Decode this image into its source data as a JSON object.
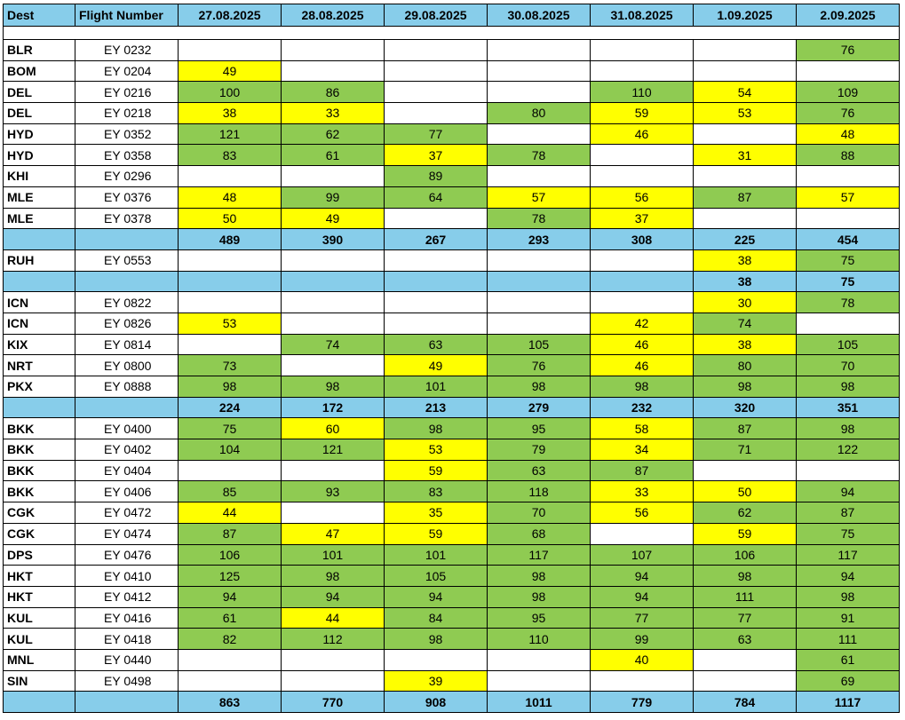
{
  "headers": [
    "Dest",
    "Flight Number",
    "27.08.2025",
    "28.08.2025",
    "29.08.2025",
    "30.08.2025",
    "31.08.2025",
    "1.09.2025",
    "2.09.2025"
  ],
  "colors": {
    "header": "#87cdea",
    "green": "#8fcb52",
    "yellow": "#ffff00",
    "white": "#ffffff"
  },
  "rows": [
    {
      "kind": "data",
      "dest": "BLR",
      "flight": "EY 0232",
      "cells": [
        [
          "",
          ""
        ],
        [
          "",
          ""
        ],
        [
          "",
          ""
        ],
        [
          "",
          ""
        ],
        [
          "",
          ""
        ],
        [
          "",
          ""
        ],
        [
          "76",
          "g"
        ]
      ]
    },
    {
      "kind": "data",
      "dest": "BOM",
      "flight": "EY 0204",
      "cells": [
        [
          "49",
          "y"
        ],
        [
          "",
          ""
        ],
        [
          "",
          ""
        ],
        [
          "",
          ""
        ],
        [
          "",
          ""
        ],
        [
          "",
          ""
        ],
        [
          "",
          ""
        ]
      ]
    },
    {
      "kind": "data",
      "dest": "DEL",
      "flight": "EY 0216",
      "cells": [
        [
          "100",
          "g"
        ],
        [
          "86",
          "g"
        ],
        [
          "",
          ""
        ],
        [
          "",
          ""
        ],
        [
          "110",
          "g"
        ],
        [
          "54",
          "y"
        ],
        [
          "109",
          "g"
        ]
      ]
    },
    {
      "kind": "data",
      "dest": "DEL",
      "flight": "EY 0218",
      "cells": [
        [
          "38",
          "y"
        ],
        [
          "33",
          "y"
        ],
        [
          "",
          ""
        ],
        [
          "80",
          "g"
        ],
        [
          "59",
          "y"
        ],
        [
          "53",
          "y"
        ],
        [
          "76",
          "g"
        ]
      ]
    },
    {
      "kind": "data",
      "dest": "HYD",
      "flight": "EY 0352",
      "cells": [
        [
          "121",
          "g"
        ],
        [
          "62",
          "g"
        ],
        [
          "77",
          "g"
        ],
        [
          "",
          ""
        ],
        [
          "46",
          "y"
        ],
        [
          "",
          ""
        ],
        [
          "48",
          "y"
        ]
      ]
    },
    {
      "kind": "data",
      "dest": "HYD",
      "flight": "EY 0358",
      "cells": [
        [
          "83",
          "g"
        ],
        [
          "61",
          "g"
        ],
        [
          "37",
          "y"
        ],
        [
          "78",
          "g"
        ],
        [
          "",
          ""
        ],
        [
          "31",
          "y"
        ],
        [
          "88",
          "g"
        ]
      ]
    },
    {
      "kind": "data",
      "dest": "KHI",
      "flight": "EY 0296",
      "cells": [
        [
          "",
          ""
        ],
        [
          "",
          ""
        ],
        [
          "89",
          "g"
        ],
        [
          "",
          ""
        ],
        [
          "",
          ""
        ],
        [
          "",
          ""
        ],
        [
          "",
          ""
        ]
      ]
    },
    {
      "kind": "data",
      "dest": "MLE",
      "flight": "EY 0376",
      "cells": [
        [
          "48",
          "y"
        ],
        [
          "99",
          "g"
        ],
        [
          "64",
          "g"
        ],
        [
          "57",
          "y"
        ],
        [
          "56",
          "y"
        ],
        [
          "87",
          "g"
        ],
        [
          "57",
          "y"
        ]
      ]
    },
    {
      "kind": "data",
      "dest": "MLE",
      "flight": "EY 0378",
      "cells": [
        [
          "50",
          "y"
        ],
        [
          "49",
          "y"
        ],
        [
          "",
          ""
        ],
        [
          "78",
          "g"
        ],
        [
          "37",
          "y"
        ],
        [
          "",
          ""
        ],
        [
          "",
          ""
        ]
      ]
    },
    {
      "kind": "total",
      "cells": [
        "489",
        "390",
        "267",
        "293",
        "308",
        "225",
        "454"
      ]
    },
    {
      "kind": "data",
      "dest": "RUH",
      "flight": "EY 0553",
      "cells": [
        [
          "",
          ""
        ],
        [
          "",
          ""
        ],
        [
          "",
          ""
        ],
        [
          "",
          ""
        ],
        [
          "",
          ""
        ],
        [
          "38",
          "y"
        ],
        [
          "75",
          "g"
        ]
      ]
    },
    {
      "kind": "total",
      "cells": [
        "",
        "",
        "",
        "",
        "",
        "38",
        "75"
      ]
    },
    {
      "kind": "data",
      "dest": "ICN",
      "flight": "EY 0822",
      "cells": [
        [
          "",
          ""
        ],
        [
          "",
          ""
        ],
        [
          "",
          ""
        ],
        [
          "",
          ""
        ],
        [
          "",
          ""
        ],
        [
          "30",
          "y"
        ],
        [
          "78",
          "g"
        ]
      ]
    },
    {
      "kind": "data",
      "dest": "ICN",
      "flight": "EY 0826",
      "cells": [
        [
          "53",
          "y"
        ],
        [
          "",
          ""
        ],
        [
          "",
          ""
        ],
        [
          "",
          ""
        ],
        [
          "42",
          "y"
        ],
        [
          "74",
          "g"
        ],
        [
          "",
          ""
        ]
      ]
    },
    {
      "kind": "data",
      "dest": "KIX",
      "flight": "EY 0814",
      "cells": [
        [
          "",
          ""
        ],
        [
          "74",
          "g"
        ],
        [
          "63",
          "g"
        ],
        [
          "105",
          "g"
        ],
        [
          "46",
          "y"
        ],
        [
          "38",
          "y"
        ],
        [
          "105",
          "g"
        ]
      ]
    },
    {
      "kind": "data",
      "dest": "NRT",
      "flight": "EY 0800",
      "cells": [
        [
          "73",
          "g"
        ],
        [
          "",
          ""
        ],
        [
          "49",
          "y"
        ],
        [
          "76",
          "g"
        ],
        [
          "46",
          "y"
        ],
        [
          "80",
          "g"
        ],
        [
          "70",
          "g"
        ]
      ]
    },
    {
      "kind": "data",
      "dest": "PKX",
      "flight": "EY 0888",
      "cells": [
        [
          "98",
          "g"
        ],
        [
          "98",
          "g"
        ],
        [
          "101",
          "g"
        ],
        [
          "98",
          "g"
        ],
        [
          "98",
          "g"
        ],
        [
          "98",
          "g"
        ],
        [
          "98",
          "g"
        ]
      ]
    },
    {
      "kind": "total",
      "cells": [
        "224",
        "172",
        "213",
        "279",
        "232",
        "320",
        "351"
      ]
    },
    {
      "kind": "data",
      "dest": "BKK",
      "flight": "EY 0400",
      "cells": [
        [
          "75",
          "g"
        ],
        [
          "60",
          "y"
        ],
        [
          "98",
          "g"
        ],
        [
          "95",
          "g"
        ],
        [
          "58",
          "y"
        ],
        [
          "87",
          "g"
        ],
        [
          "98",
          "g"
        ]
      ]
    },
    {
      "kind": "data",
      "dest": "BKK",
      "flight": "EY 0402",
      "cells": [
        [
          "104",
          "g"
        ],
        [
          "121",
          "g"
        ],
        [
          "53",
          "y"
        ],
        [
          "79",
          "g"
        ],
        [
          "34",
          "y"
        ],
        [
          "71",
          "g"
        ],
        [
          "122",
          "g"
        ]
      ]
    },
    {
      "kind": "data",
      "dest": "BKK",
      "flight": "EY 0404",
      "cells": [
        [
          "",
          ""
        ],
        [
          "",
          ""
        ],
        [
          "59",
          "y"
        ],
        [
          "63",
          "g"
        ],
        [
          "87",
          "g"
        ],
        [
          "",
          ""
        ],
        [
          "",
          ""
        ]
      ]
    },
    {
      "kind": "data",
      "dest": "BKK",
      "flight": "EY 0406",
      "cells": [
        [
          "85",
          "g"
        ],
        [
          "93",
          "g"
        ],
        [
          "83",
          "g"
        ],
        [
          "118",
          "g"
        ],
        [
          "33",
          "y"
        ],
        [
          "50",
          "y"
        ],
        [
          "94",
          "g"
        ]
      ]
    },
    {
      "kind": "data",
      "dest": "CGK",
      "flight": "EY 0472",
      "cells": [
        [
          "44",
          "y"
        ],
        [
          "",
          ""
        ],
        [
          "35",
          "y"
        ],
        [
          "70",
          "g"
        ],
        [
          "56",
          "y"
        ],
        [
          "62",
          "g"
        ],
        [
          "87",
          "g"
        ]
      ]
    },
    {
      "kind": "data",
      "dest": "CGK",
      "flight": "EY 0474",
      "cells": [
        [
          "87",
          "g"
        ],
        [
          "47",
          "y"
        ],
        [
          "59",
          "y"
        ],
        [
          "68",
          "g"
        ],
        [
          "",
          ""
        ],
        [
          "59",
          "y"
        ],
        [
          "75",
          "g"
        ]
      ]
    },
    {
      "kind": "data",
      "dest": "DPS",
      "flight": "EY 0476",
      "cells": [
        [
          "106",
          "g"
        ],
        [
          "101",
          "g"
        ],
        [
          "101",
          "g"
        ],
        [
          "117",
          "g"
        ],
        [
          "107",
          "g"
        ],
        [
          "106",
          "g"
        ],
        [
          "117",
          "g"
        ]
      ]
    },
    {
      "kind": "data",
      "dest": "HKT",
      "flight": "EY 0410",
      "cells": [
        [
          "125",
          "g"
        ],
        [
          "98",
          "g"
        ],
        [
          "105",
          "g"
        ],
        [
          "98",
          "g"
        ],
        [
          "94",
          "g"
        ],
        [
          "98",
          "g"
        ],
        [
          "94",
          "g"
        ]
      ]
    },
    {
      "kind": "data",
      "dest": "HKT",
      "flight": "EY 0412",
      "cells": [
        [
          "94",
          "g"
        ],
        [
          "94",
          "g"
        ],
        [
          "94",
          "g"
        ],
        [
          "98",
          "g"
        ],
        [
          "94",
          "g"
        ],
        [
          "111",
          "g"
        ],
        [
          "98",
          "g"
        ]
      ]
    },
    {
      "kind": "data",
      "dest": "KUL",
      "flight": "EY 0416",
      "cells": [
        [
          "61",
          "g"
        ],
        [
          "44",
          "y"
        ],
        [
          "84",
          "g"
        ],
        [
          "95",
          "g"
        ],
        [
          "77",
          "g"
        ],
        [
          "77",
          "g"
        ],
        [
          "91",
          "g"
        ]
      ]
    },
    {
      "kind": "data",
      "dest": "KUL",
      "flight": "EY 0418",
      "cells": [
        [
          "82",
          "g"
        ],
        [
          "112",
          "g"
        ],
        [
          "98",
          "g"
        ],
        [
          "110",
          "g"
        ],
        [
          "99",
          "g"
        ],
        [
          "63",
          "g"
        ],
        [
          "111",
          "g"
        ]
      ]
    },
    {
      "kind": "data",
      "dest": "MNL",
      "flight": "EY 0440",
      "cells": [
        [
          "",
          ""
        ],
        [
          "",
          ""
        ],
        [
          "",
          ""
        ],
        [
          "",
          ""
        ],
        [
          "40",
          "y"
        ],
        [
          "",
          ""
        ],
        [
          "61",
          "g"
        ]
      ]
    },
    {
      "kind": "data",
      "dest": "SIN",
      "flight": "EY 0498",
      "cells": [
        [
          "",
          ""
        ],
        [
          "",
          ""
        ],
        [
          "39",
          "y"
        ],
        [
          "",
          ""
        ],
        [
          "",
          ""
        ],
        [
          "",
          ""
        ],
        [
          "69",
          "g"
        ]
      ]
    },
    {
      "kind": "total",
      "cells": [
        "863",
        "770",
        "908",
        "1011",
        "779",
        "784",
        "1117"
      ]
    }
  ]
}
